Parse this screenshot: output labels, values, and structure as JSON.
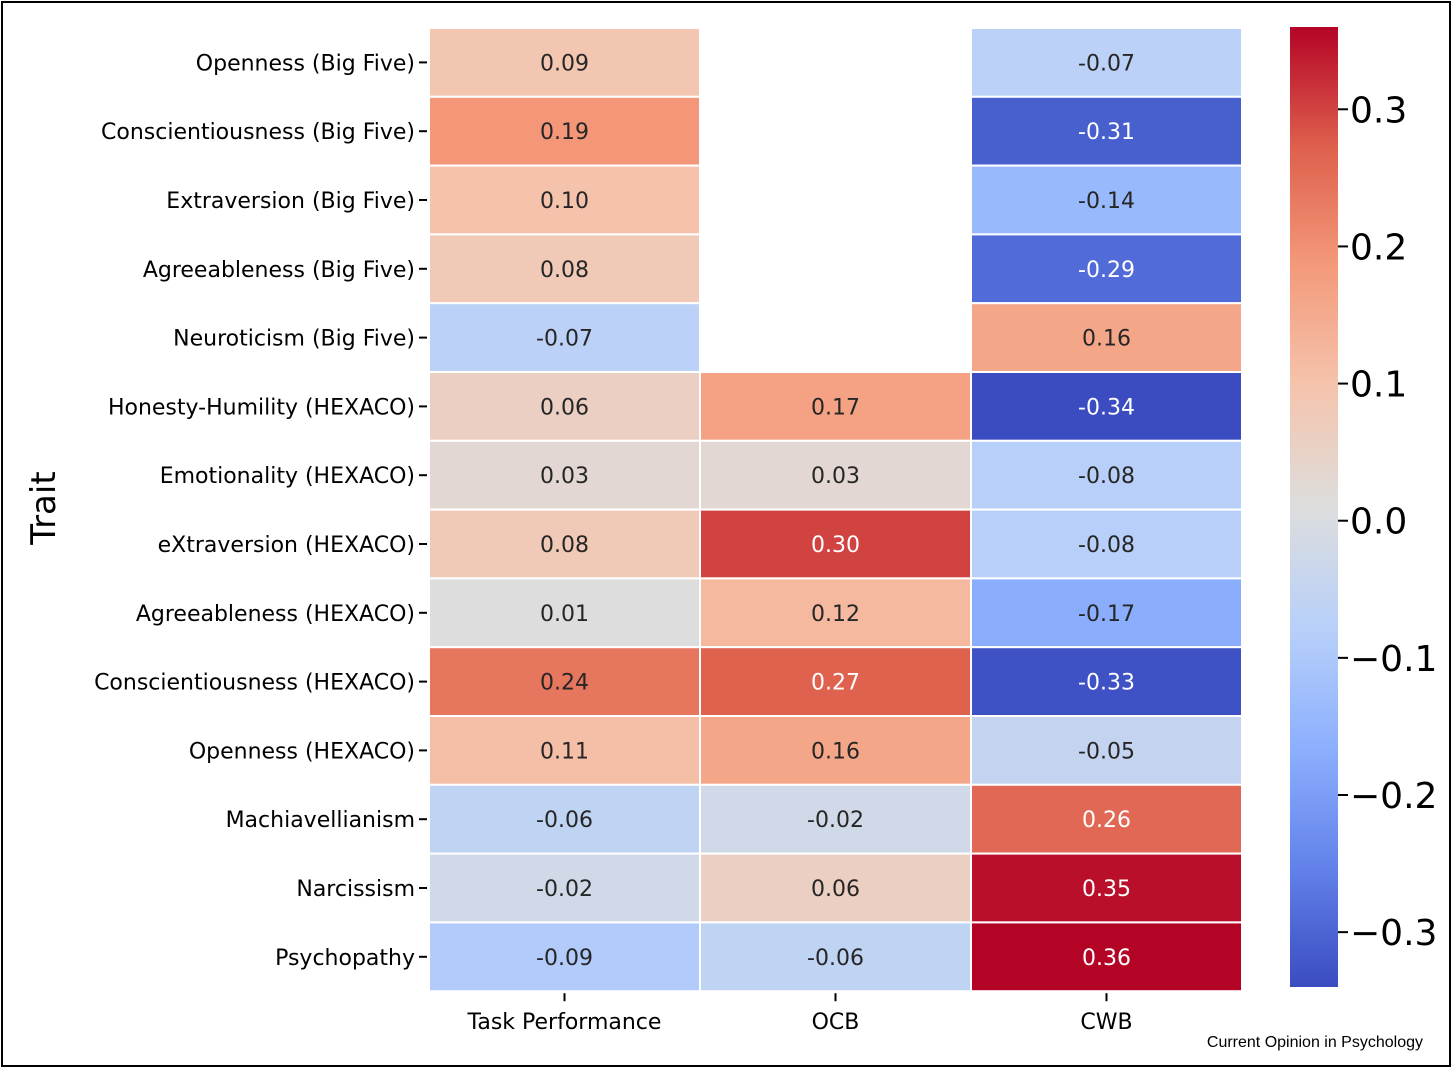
{
  "source_label": "Current Opinion in Psychology",
  "chart_data": {
    "type": "heatmap",
    "title": "",
    "xlabel": "",
    "ylabel": "Trait",
    "columns": [
      "Task Performance",
      "OCB",
      "CWB"
    ],
    "rows": [
      "Openness (Big Five)",
      "Conscientiousness (Big Five)",
      "Extraversion (Big Five)",
      "Agreeableness (Big Five)",
      "Neuroticism (Big Five)",
      "Honesty-Humility (HEXACO)",
      "Emotionality (HEXACO)",
      "eXtraversion (HEXACO)",
      "Agreeableness (HEXACO)",
      "Conscientiousness (HEXACO)",
      "Openness (HEXACO)",
      "Machiavellianism",
      "Narcissism",
      "Psychopathy"
    ],
    "values": [
      [
        0.09,
        null,
        -0.07
      ],
      [
        0.19,
        null,
        -0.31
      ],
      [
        0.1,
        null,
        -0.14
      ],
      [
        0.08,
        null,
        -0.29
      ],
      [
        -0.07,
        null,
        0.16
      ],
      [
        0.06,
        0.17,
        -0.34
      ],
      [
        0.03,
        0.03,
        -0.08
      ],
      [
        0.08,
        0.3,
        -0.08
      ],
      [
        0.01,
        0.12,
        -0.17
      ],
      [
        0.24,
        0.27,
        -0.33
      ],
      [
        0.11,
        0.16,
        -0.05
      ],
      [
        -0.06,
        -0.02,
        0.26
      ],
      [
        -0.02,
        0.06,
        0.35
      ],
      [
        -0.09,
        -0.06,
        0.36
      ]
    ],
    "colormap": "coolwarm",
    "colorbar": {
      "range": [
        -0.34,
        0.36
      ],
      "ticks": [
        0.3,
        0.2,
        0.1,
        0.0,
        -0.1,
        -0.2,
        -0.3
      ],
      "tick_labels": [
        "0.3",
        "0.2",
        "0.1",
        "0.0",
        "−0.1",
        "−0.2",
        "−0.3"
      ]
    },
    "annotation_format": "0.00"
  }
}
